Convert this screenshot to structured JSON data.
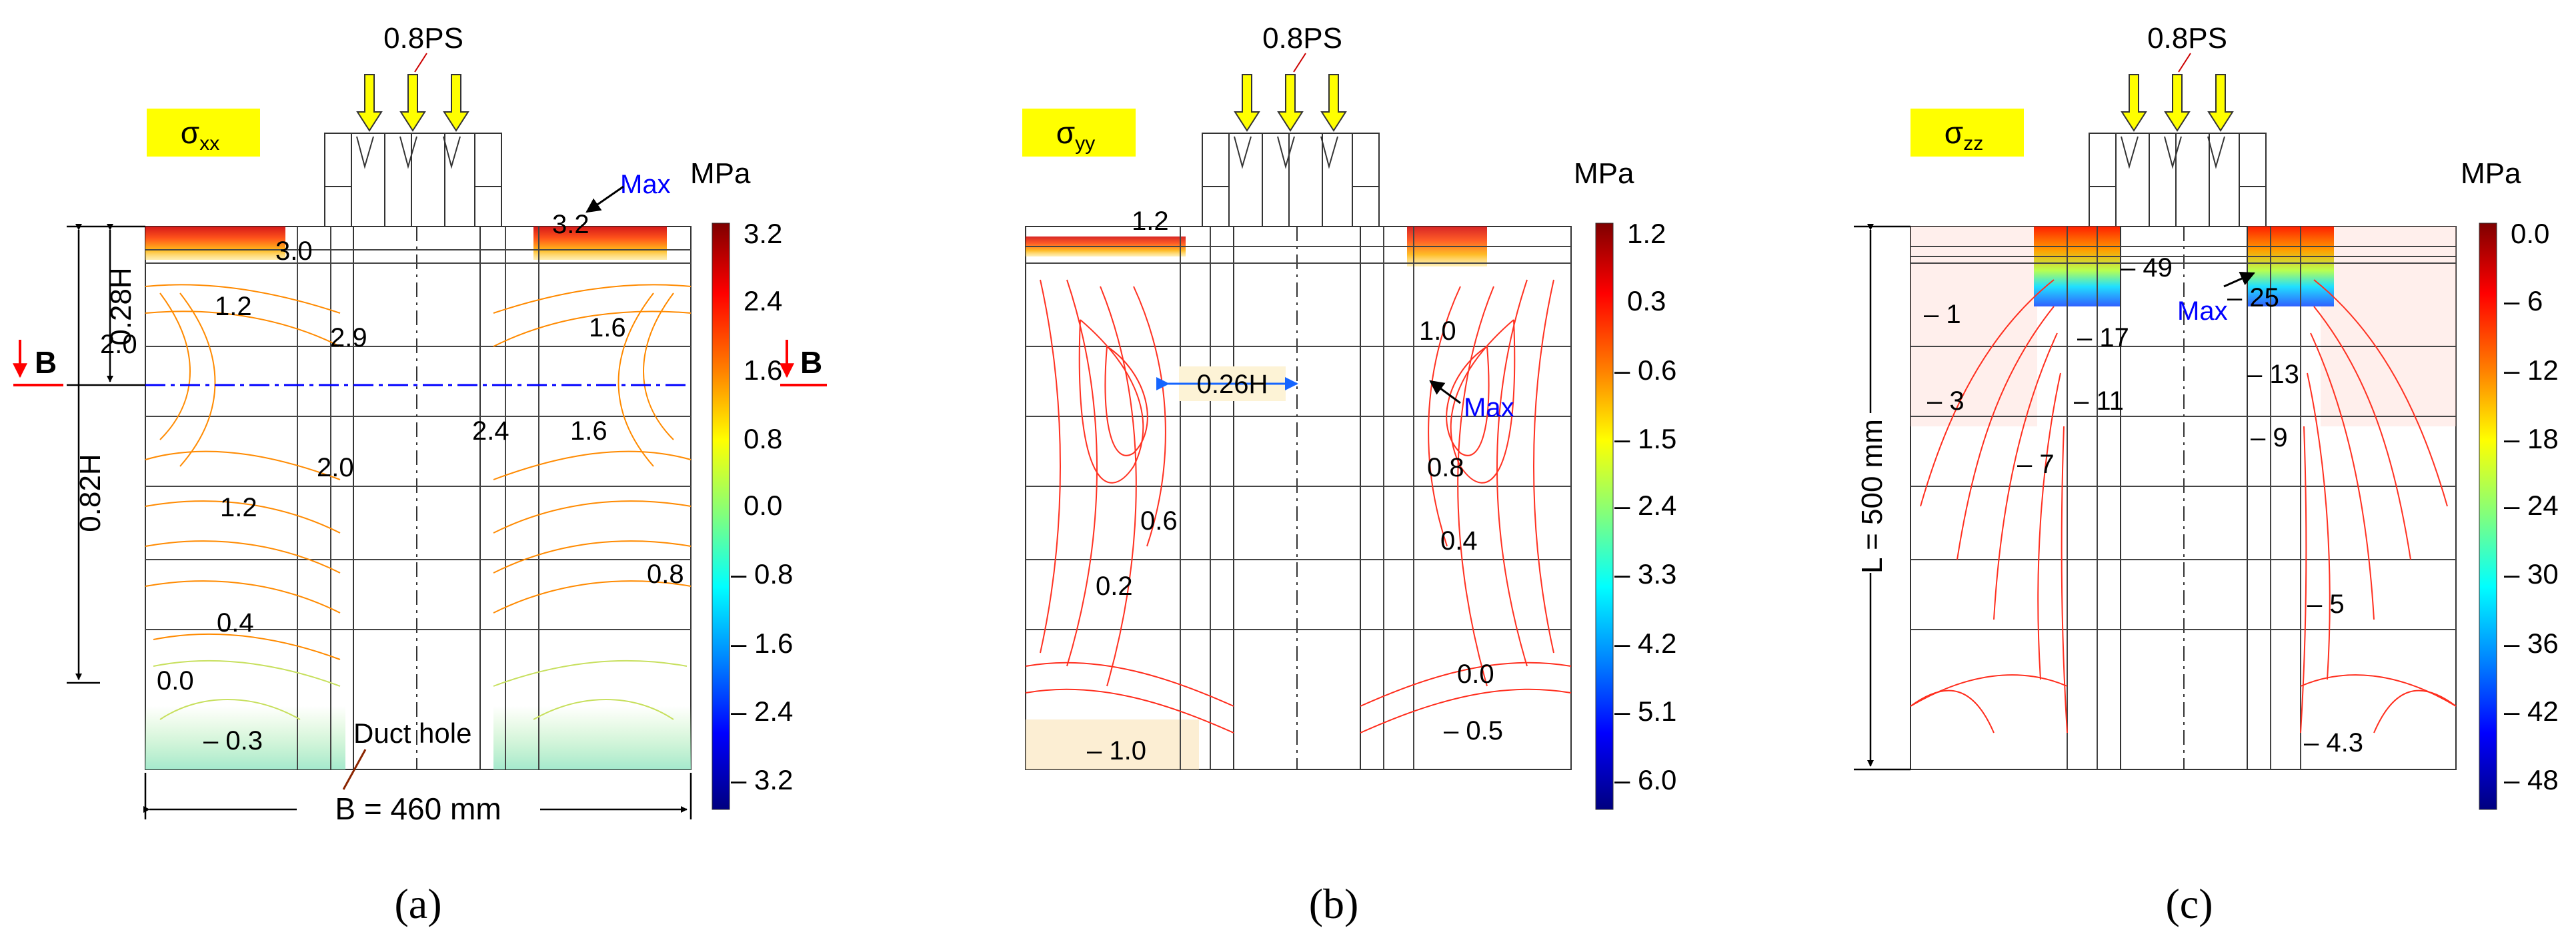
{
  "load_label": "0.8PS",
  "unit_label": "MPa",
  "max_label": "Max",
  "colors": {
    "cbar": [
      "#00007f",
      "#0000ff",
      "#007fff",
      "#00ffff",
      "#7fff7f",
      "#ffff00",
      "#ff7f00",
      "#ff0000",
      "#7f0000"
    ],
    "label_bg": "#ffff00",
    "arrow_fill": "#ffff00",
    "section_red": "#ff0000",
    "section_blue": "#0000ff",
    "max_blue": "#0000ff",
    "callout_bg": "#fdf3d6"
  },
  "panels": [
    {
      "id": "a",
      "component_symbol": "σ",
      "component_sub": "xx",
      "caption": "(a)",
      "colorbar_ticks": [
        "3.2",
        "2.4",
        "1.6",
        "0.8",
        "0.0",
        "– 0.8",
        "– 1.6",
        "– 2.4",
        "– 3.2"
      ],
      "contour_labels": [
        "3.2",
        "3.0",
        "1.2",
        "2.0",
        "2.9",
        "1.6",
        "2.4",
        "1.6",
        "2.0",
        "1.2",
        "0.8",
        "0.4",
        "0.0",
        "– 0.3"
      ],
      "dimension_labels": {
        "upper_height": "0.28H",
        "total_height": "0.82H",
        "width": "B = 460 mm"
      },
      "section_label": "B",
      "duct_label": "Duct hole"
    },
    {
      "id": "b",
      "component_symbol": "σ",
      "component_sub": "yy",
      "caption": "(b)",
      "colorbar_ticks": [
        "1.2",
        "0.3",
        "– 0.6",
        "– 1.5",
        "– 2.4",
        "– 3.3",
        "– 4.2",
        "– 5.1",
        "– 6.0"
      ],
      "contour_labels": [
        "1.2",
        "1.0",
        "0.8",
        "0.6",
        "0.4",
        "0.2",
        "0.0",
        "– 0.5",
        "– 1.0"
      ],
      "callout_label": "0.26H"
    },
    {
      "id": "c",
      "component_symbol": "σ",
      "component_sub": "zz",
      "caption": "(c)",
      "colorbar_ticks": [
        "0.0",
        "– 6",
        "– 12",
        "– 18",
        "– 24",
        "– 30",
        "– 36",
        "– 42",
        "– 48"
      ],
      "contour_labels": [
        "– 49",
        "– 25",
        "– 1",
        "– 17",
        "– 13",
        "– 3",
        "– 11",
        "– 9",
        "– 7",
        "– 5",
        "– 4.3"
      ],
      "dimension_labels": {
        "length": "L = 500 mm"
      }
    }
  ]
}
